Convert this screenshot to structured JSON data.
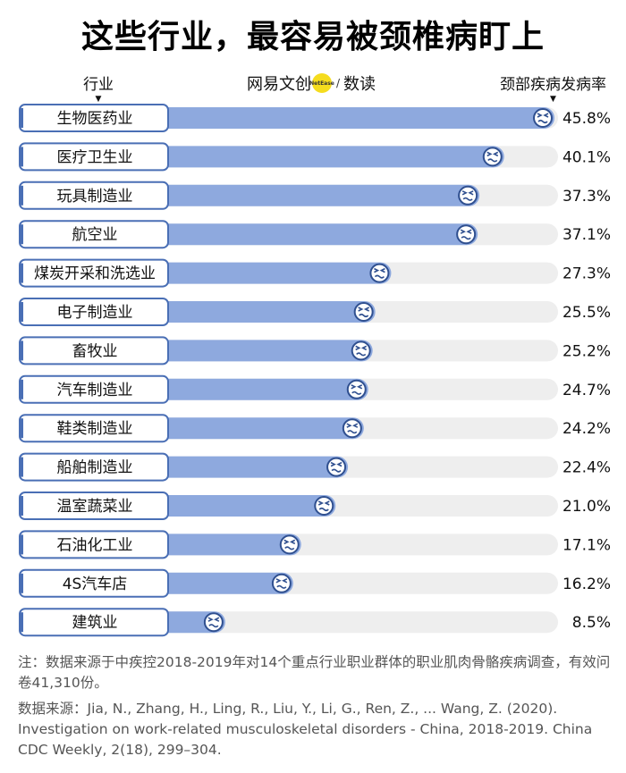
{
  "header": {
    "title": "这些行业，最容易被颈椎病盯上",
    "industry_col": "行业",
    "rate_col": "颈部疾病发病率",
    "brand_name": "网易文创",
    "brand_badge": "NetEase",
    "brand_sub": "数读"
  },
  "footnote": "注：数据来源于中疾控2018-2019年对14个重点行业职业群体的职业肌肉骨骼疾病调查，有效问卷41,310份。",
  "source": "数据来源：Jia, N., Zhang, H., Ling, R., Liu, Y., Li, G., Ren, Z., ... Wang, Z. (2020). Investigation on work-related musculoskeletal disorders - China, 2018-2019. China CDC Weekly, 2(18), 299–304.",
  "colors": {
    "bar_fill": "#8ea9de",
    "bar_track": "#eeeeee",
    "label_border": "#4a6fb5",
    "icon_fill": "#ffffff",
    "icon_stroke": "#2f4f8f"
  },
  "icons": {
    "bar_end": "grimace-face-icon"
  },
  "chart_data": {
    "type": "bar",
    "orientation": "horizontal",
    "categories": [
      "生物医药业",
      "医疗卫生业",
      "玩具制造业",
      "航空业",
      "煤炭开采和洗选业",
      "电子制造业",
      "畜牧业",
      "汽车制造业",
      "鞋类制造业",
      "船舶制造业",
      "温室蔬菜业",
      "石油化工业",
      "4S汽车店",
      "建筑业"
    ],
    "values": [
      45.8,
      40.1,
      37.3,
      37.1,
      27.3,
      25.5,
      25.2,
      24.7,
      24.2,
      22.4,
      21.0,
      17.1,
      16.2,
      8.5
    ],
    "value_labels": [
      "45.8%",
      "40.1%",
      "37.3%",
      "37.1%",
      "27.3%",
      "25.5%",
      "25.2%",
      "24.7%",
      "24.2%",
      "22.4%",
      "21.0%",
      "17.1%",
      "16.2%",
      "8.5%"
    ],
    "ylabel": "颈部疾病发病率",
    "xlim": [
      0,
      45.8
    ],
    "grid": false,
    "legend": "none"
  }
}
